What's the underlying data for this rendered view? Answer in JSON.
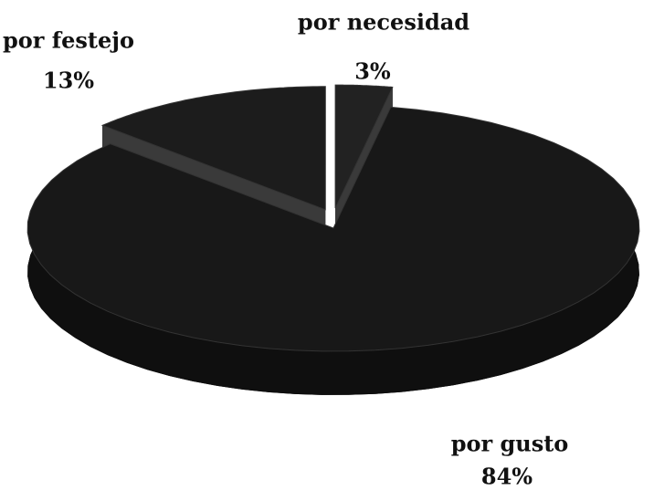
{
  "chart_data": {
    "type": "pie",
    "categories": [
      "por festejo",
      "por necesidad",
      "por gusto"
    ],
    "values": [
      13,
      3,
      84
    ],
    "value_labels": [
      "13%",
      "3%",
      "84%"
    ],
    "colors": [
      "#1c1c1c",
      "#222222",
      "#181818"
    ]
  }
}
